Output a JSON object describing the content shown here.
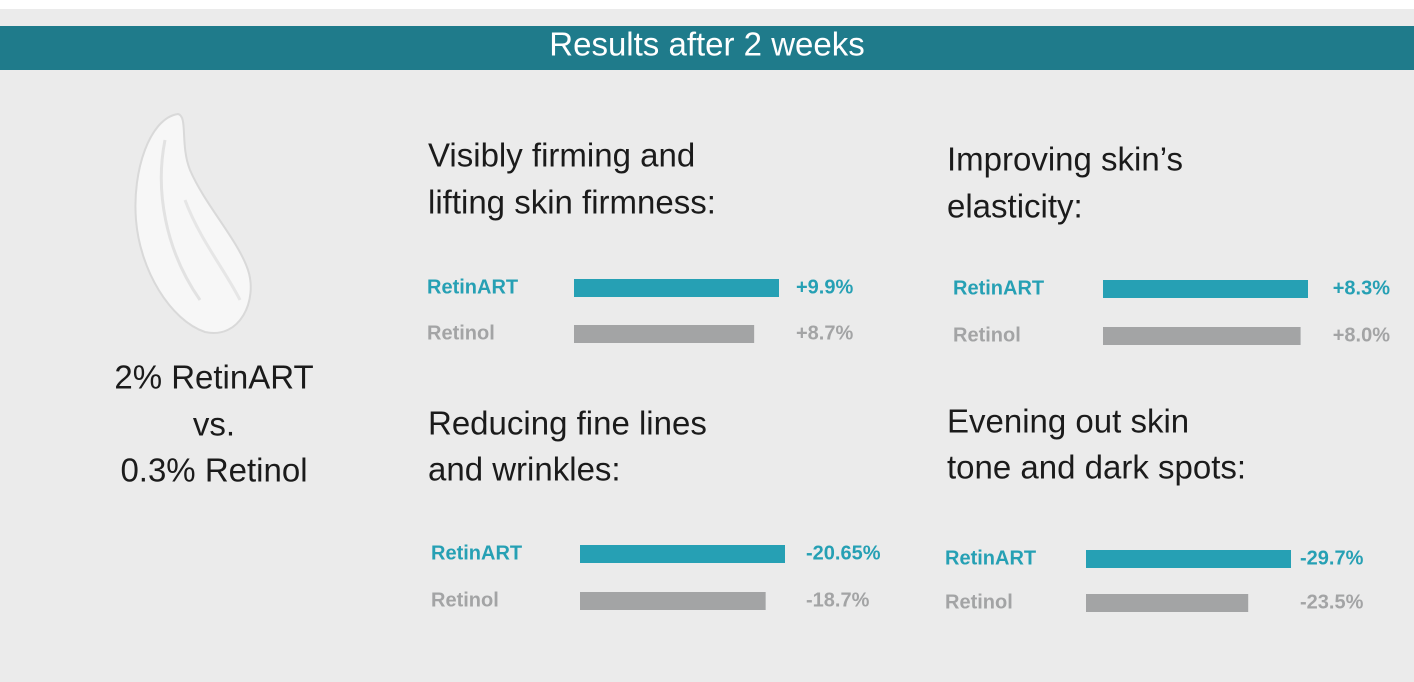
{
  "header": {
    "title": "Results after 2 weeks"
  },
  "comparison": {
    "lines": [
      "2% RetinART",
      "vs.",
      "0.3% Retinol"
    ]
  },
  "chart_data": [
    {
      "type": "bar",
      "orientation": "horizontal",
      "title": [
        "Visibly firming and",
        "lifting skin firmness:"
      ],
      "categories": [
        "RetinART",
        "Retinol"
      ],
      "values": [
        9.9,
        8.7
      ],
      "value_labels": [
        "+9.9%",
        "+8.7%"
      ],
      "colors": [
        "#26a0b4",
        "#a3a4a5"
      ]
    },
    {
      "type": "bar",
      "orientation": "horizontal",
      "title": [
        "Improving skin’s",
        "elasticity:"
      ],
      "categories": [
        "RetinART",
        "Retinol"
      ],
      "values": [
        8.3,
        8.0
      ],
      "value_labels": [
        "+8.3%",
        "+8.0%"
      ],
      "colors": [
        "#26a0b4",
        "#a3a4a5"
      ]
    },
    {
      "type": "bar",
      "orientation": "horizontal",
      "title": [
        "Reducing fine lines",
        "and wrinkles:"
      ],
      "categories": [
        "RetinART",
        "Retinol"
      ],
      "values": [
        -20.65,
        -18.7
      ],
      "value_labels": [
        "-20.65%",
        "-18.7%"
      ],
      "colors": [
        "#26a0b4",
        "#a3a4a5"
      ]
    },
    {
      "type": "bar",
      "orientation": "horizontal",
      "title": [
        "Evening out skin",
        "tone and dark spots:"
      ],
      "categories": [
        "RetinART",
        "Retinol"
      ],
      "values": [
        -29.7,
        -23.5
      ],
      "value_labels": [
        "-29.7%",
        "-23.5%"
      ],
      "colors": [
        "#26a0b4",
        "#a3a4a5"
      ]
    }
  ]
}
